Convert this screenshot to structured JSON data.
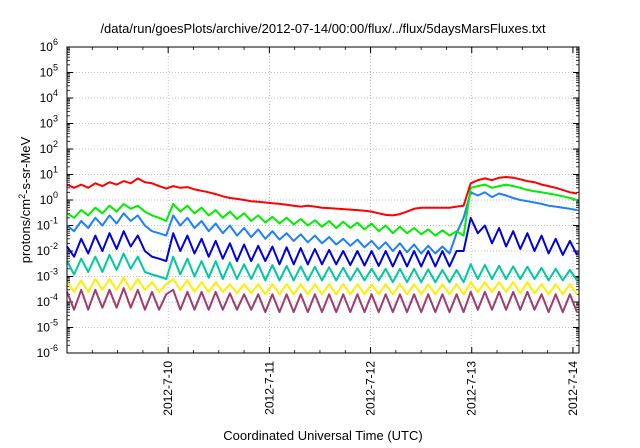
{
  "chart_data": {
    "type": "line",
    "title": "/data/run/goesPlots/archive/2012-07-14/00:00/flux/../flux/5daysMarsFluxes.txt",
    "xlabel": "Coordinated Universal Time (UTC)",
    "ylabel": {
      "prefix": "protons/cm",
      "sup": "2",
      "suffix": "-s-sr-MeV"
    },
    "y_scale": "log",
    "ylim_exp": [
      -6,
      6
    ],
    "y_ticks": [
      {
        "base": "10",
        "exp": "-6"
      },
      {
        "base": "10",
        "exp": "-5"
      },
      {
        "base": "10",
        "exp": "-4"
      },
      {
        "base": "10",
        "exp": "-3"
      },
      {
        "base": "10",
        "exp": "-2"
      },
      {
        "base": "10",
        "exp": "-1"
      },
      {
        "base": "10",
        "exp": "0"
      },
      {
        "base": "10",
        "exp": "1"
      },
      {
        "base": "10",
        "exp": "2"
      },
      {
        "base": "10",
        "exp": "3"
      },
      {
        "base": "10",
        "exp": "4"
      },
      {
        "base": "10",
        "exp": "5"
      },
      {
        "base": "10",
        "exp": "6"
      }
    ],
    "xlim_days": [
      0.0,
      5.06
    ],
    "x_ticks": [
      "2012-7-10",
      "2012-7-11",
      "2012-7-12",
      "2012-7-13",
      "2012-7-14"
    ],
    "x_tick_days": [
      1.0,
      2.0,
      3.0,
      4.0,
      5.0
    ],
    "grid": true,
    "series": [
      {
        "color": "#ff0000",
        "x": [
          0.0,
          0.07,
          0.14,
          0.21,
          0.28,
          0.35,
          0.42,
          0.49,
          0.56,
          0.63,
          0.7,
          0.77,
          0.84,
          0.91,
          0.98,
          1.05,
          1.12,
          1.19,
          1.26,
          1.33,
          1.4,
          1.47,
          1.54,
          1.61,
          1.68,
          1.75,
          1.82,
          1.89,
          1.96,
          2.03,
          2.1,
          2.17,
          2.24,
          2.31,
          2.38,
          2.45,
          2.52,
          2.59,
          2.66,
          2.73,
          2.8,
          2.87,
          2.94,
          3.01,
          3.08,
          3.15,
          3.22,
          3.29,
          3.36,
          3.43,
          3.5,
          3.57,
          3.64,
          3.71,
          3.78,
          3.85,
          3.92,
          3.99,
          4.06,
          4.13,
          4.2,
          4.27,
          4.34,
          4.41,
          4.48,
          4.55,
          4.62,
          4.69,
          4.76,
          4.83,
          4.9,
          4.97,
          5.04
        ],
        "y": [
          4.0,
          3.0,
          4.0,
          3.0,
          4.5,
          3.5,
          5.0,
          4.0,
          5.5,
          4.5,
          7.0,
          5.0,
          4.5,
          3.5,
          2.8,
          3.5,
          3.0,
          3.2,
          2.6,
          2.3,
          2.0,
          1.7,
          1.4,
          1.2,
          1.1,
          1.0,
          0.9,
          0.85,
          0.8,
          0.75,
          0.7,
          0.65,
          0.6,
          0.55,
          0.6,
          0.55,
          0.5,
          0.48,
          0.46,
          0.44,
          0.42,
          0.4,
          0.38,
          0.35,
          0.3,
          0.26,
          0.25,
          0.28,
          0.35,
          0.45,
          0.5,
          0.5,
          0.5,
          0.5,
          0.5,
          0.55,
          0.6,
          4.5,
          6.0,
          7.0,
          6.0,
          7.5,
          8.0,
          7.5,
          6.5,
          5.5,
          5.0,
          4.0,
          3.5,
          3.0,
          2.5,
          2.0,
          1.8
        ]
      },
      {
        "color": "#00ee00",
        "x": [
          0.0,
          0.07,
          0.14,
          0.21,
          0.28,
          0.35,
          0.42,
          0.49,
          0.56,
          0.63,
          0.7,
          0.77,
          0.84,
          0.91,
          0.98,
          1.05,
          1.12,
          1.19,
          1.26,
          1.33,
          1.4,
          1.47,
          1.54,
          1.61,
          1.68,
          1.75,
          1.82,
          1.89,
          1.96,
          2.03,
          2.1,
          2.17,
          2.24,
          2.31,
          2.38,
          2.45,
          2.52,
          2.59,
          2.66,
          2.73,
          2.8,
          2.87,
          2.94,
          3.01,
          3.08,
          3.15,
          3.22,
          3.29,
          3.36,
          3.43,
          3.5,
          3.57,
          3.64,
          3.71,
          3.78,
          3.85,
          3.92,
          3.99,
          4.06,
          4.13,
          4.2,
          4.27,
          4.34,
          4.41,
          4.48,
          4.55,
          4.62,
          4.69,
          4.76,
          4.83,
          4.9,
          4.97,
          5.04
        ],
        "y": [
          0.3,
          0.2,
          0.4,
          0.25,
          0.5,
          0.3,
          0.6,
          0.35,
          0.7,
          0.45,
          0.6,
          0.35,
          0.25,
          0.2,
          0.15,
          0.7,
          0.35,
          0.6,
          0.3,
          0.5,
          0.25,
          0.4,
          0.2,
          0.35,
          0.18,
          0.3,
          0.15,
          0.25,
          0.13,
          0.22,
          0.12,
          0.2,
          0.11,
          0.18,
          0.1,
          0.16,
          0.09,
          0.15,
          0.08,
          0.14,
          0.08,
          0.13,
          0.07,
          0.12,
          0.06,
          0.1,
          0.05,
          0.09,
          0.05,
          0.08,
          0.045,
          0.07,
          0.04,
          0.065,
          0.04,
          0.06,
          0.04,
          3.0,
          3.5,
          4.0,
          3.0,
          3.5,
          4.0,
          3.5,
          3.0,
          2.5,
          2.2,
          2.0,
          1.8,
          1.6,
          1.4,
          1.2,
          1.0
        ]
      },
      {
        "color": "#1e7fff",
        "x": [
          0.0,
          0.07,
          0.14,
          0.21,
          0.28,
          0.35,
          0.42,
          0.49,
          0.56,
          0.63,
          0.7,
          0.77,
          0.84,
          0.91,
          0.98,
          1.05,
          1.12,
          1.19,
          1.26,
          1.33,
          1.4,
          1.47,
          1.54,
          1.61,
          1.68,
          1.75,
          1.82,
          1.89,
          1.96,
          2.03,
          2.1,
          2.17,
          2.24,
          2.31,
          2.38,
          2.45,
          2.52,
          2.59,
          2.66,
          2.73,
          2.8,
          2.87,
          2.94,
          3.01,
          3.08,
          3.15,
          3.22,
          3.29,
          3.36,
          3.43,
          3.5,
          3.57,
          3.64,
          3.71,
          3.78,
          3.85,
          3.92,
          3.99,
          4.06,
          4.13,
          4.2,
          4.27,
          4.34,
          4.41,
          4.48,
          4.55,
          4.62,
          4.69,
          4.76,
          4.83,
          4.9,
          4.97,
          5.04
        ],
        "y": [
          0.1,
          0.06,
          0.15,
          0.08,
          0.2,
          0.1,
          0.25,
          0.12,
          0.3,
          0.15,
          0.25,
          0.1,
          0.06,
          0.05,
          0.04,
          0.25,
          0.1,
          0.2,
          0.08,
          0.15,
          0.06,
          0.12,
          0.05,
          0.1,
          0.04,
          0.08,
          0.035,
          0.07,
          0.03,
          0.06,
          0.028,
          0.05,
          0.025,
          0.045,
          0.022,
          0.04,
          0.02,
          0.035,
          0.018,
          0.03,
          0.016,
          0.028,
          0.014,
          0.025,
          0.012,
          0.022,
          0.01,
          0.02,
          0.009,
          0.018,
          0.008,
          0.016,
          0.008,
          0.015,
          0.008,
          0.05,
          0.2,
          2.0,
          1.5,
          2.0,
          1.3,
          1.8,
          1.5,
          1.2,
          1.0,
          0.9,
          0.8,
          0.7,
          0.6,
          0.55,
          0.5,
          0.45,
          0.4
        ]
      },
      {
        "color": "#0000dd",
        "x": [
          0.0,
          0.07,
          0.14,
          0.21,
          0.28,
          0.35,
          0.42,
          0.49,
          0.56,
          0.63,
          0.7,
          0.77,
          0.84,
          0.91,
          0.98,
          1.05,
          1.12,
          1.19,
          1.26,
          1.33,
          1.4,
          1.47,
          1.54,
          1.61,
          1.68,
          1.75,
          1.82,
          1.89,
          1.96,
          2.03,
          2.1,
          2.17,
          2.24,
          2.31,
          2.38,
          2.45,
          2.52,
          2.59,
          2.66,
          2.73,
          2.8,
          2.87,
          2.94,
          3.01,
          3.08,
          3.15,
          3.22,
          3.29,
          3.36,
          3.43,
          3.5,
          3.57,
          3.64,
          3.71,
          3.78,
          3.85,
          3.92,
          3.99,
          4.06,
          4.13,
          4.2,
          4.27,
          4.34,
          4.41,
          4.48,
          4.55,
          4.62,
          4.69,
          4.76,
          4.83,
          4.9,
          4.97,
          5.04
        ],
        "y": [
          0.015,
          0.006,
          0.03,
          0.008,
          0.04,
          0.01,
          0.05,
          0.012,
          0.06,
          0.015,
          0.04,
          0.01,
          0.006,
          0.005,
          0.004,
          0.05,
          0.01,
          0.04,
          0.008,
          0.03,
          0.006,
          0.025,
          0.005,
          0.02,
          0.004,
          0.018,
          0.004,
          0.016,
          0.004,
          0.015,
          0.003,
          0.014,
          0.003,
          0.013,
          0.003,
          0.012,
          0.003,
          0.011,
          0.003,
          0.01,
          0.0028,
          0.01,
          0.0027,
          0.01,
          0.0026,
          0.01,
          0.0025,
          0.01,
          0.0025,
          0.01,
          0.0025,
          0.01,
          0.0025,
          0.01,
          0.0025,
          0.01,
          0.01,
          0.2,
          0.05,
          0.1,
          0.02,
          0.08,
          0.015,
          0.06,
          0.012,
          0.05,
          0.01,
          0.04,
          0.008,
          0.03,
          0.007,
          0.025,
          0.007
        ]
      },
      {
        "color": "#00c8a0",
        "x": [
          0.0,
          0.07,
          0.14,
          0.21,
          0.28,
          0.35,
          0.42,
          0.49,
          0.56,
          0.63,
          0.7,
          0.77,
          0.84,
          0.91,
          0.98,
          1.05,
          1.12,
          1.19,
          1.26,
          1.33,
          1.4,
          1.47,
          1.54,
          1.61,
          1.68,
          1.75,
          1.82,
          1.89,
          1.96,
          2.03,
          2.1,
          2.17,
          2.24,
          2.31,
          2.38,
          2.45,
          2.52,
          2.59,
          2.66,
          2.73,
          2.8,
          2.87,
          2.94,
          3.01,
          3.08,
          3.15,
          3.22,
          3.29,
          3.36,
          3.43,
          3.5,
          3.57,
          3.64,
          3.71,
          3.78,
          3.85,
          3.92,
          3.99,
          4.06,
          4.13,
          4.2,
          4.27,
          4.34,
          4.41,
          4.48,
          4.55,
          4.62,
          4.69,
          4.76,
          4.83,
          4.9,
          4.97,
          5.04
        ],
        "y": [
          0.004,
          0.0012,
          0.005,
          0.0015,
          0.006,
          0.0015,
          0.007,
          0.0018,
          0.008,
          0.002,
          0.006,
          0.0015,
          0.0012,
          0.001,
          0.0008,
          0.006,
          0.0012,
          0.005,
          0.001,
          0.004,
          0.0009,
          0.004,
          0.0008,
          0.0035,
          0.0008,
          0.003,
          0.0008,
          0.003,
          0.0007,
          0.0028,
          0.0007,
          0.0026,
          0.0007,
          0.0025,
          0.0007,
          0.0024,
          0.0007,
          0.0023,
          0.0007,
          0.0022,
          0.0007,
          0.0021,
          0.0007,
          0.002,
          0.0007,
          0.002,
          0.0006,
          0.002,
          0.0006,
          0.002,
          0.0006,
          0.0019,
          0.0006,
          0.0018,
          0.0006,
          0.0018,
          0.0006,
          0.003,
          0.0008,
          0.0028,
          0.0008,
          0.0026,
          0.0008,
          0.0025,
          0.0008,
          0.0024,
          0.0008,
          0.0022,
          0.0007,
          0.002,
          0.0007,
          0.0018,
          0.0007
        ]
      },
      {
        "color": "#ffee00",
        "x": [
          0.0,
          0.07,
          0.14,
          0.21,
          0.28,
          0.35,
          0.42,
          0.49,
          0.56,
          0.63,
          0.7,
          0.77,
          0.84,
          0.91,
          0.98,
          1.05,
          1.12,
          1.19,
          1.26,
          1.33,
          1.4,
          1.47,
          1.54,
          1.61,
          1.68,
          1.75,
          1.82,
          1.89,
          1.96,
          2.03,
          2.1,
          2.17,
          2.24,
          2.31,
          2.38,
          2.45,
          2.52,
          2.59,
          2.66,
          2.73,
          2.8,
          2.87,
          2.94,
          3.01,
          3.08,
          3.15,
          3.22,
          3.29,
          3.36,
          3.43,
          3.5,
          3.57,
          3.64,
          3.71,
          3.78,
          3.85,
          3.92,
          3.99,
          4.06,
          4.13,
          4.2,
          4.27,
          4.34,
          4.41,
          4.48,
          4.55,
          4.62,
          4.69,
          4.76,
          4.83,
          4.9,
          4.97,
          5.04
        ],
        "y": [
          0.0006,
          0.00025,
          0.0007,
          0.00025,
          0.0008,
          0.0003,
          0.0008,
          0.0003,
          0.0009,
          0.0003,
          0.0008,
          0.0003,
          0.0006,
          0.00025,
          0.0005,
          0.0008,
          0.0003,
          0.0007,
          0.00025,
          0.0006,
          0.00025,
          0.0006,
          0.00025,
          0.0005,
          0.00022,
          0.0005,
          0.00022,
          0.0005,
          0.0002,
          0.0005,
          0.0002,
          0.0005,
          0.0002,
          0.0005,
          0.0002,
          0.0005,
          0.0002,
          0.0005,
          0.0002,
          0.0005,
          0.0002,
          0.0005,
          0.0002,
          0.0005,
          0.0002,
          0.0005,
          0.0002,
          0.0005,
          0.0002,
          0.0005,
          0.0002,
          0.0005,
          0.0002,
          0.0005,
          0.0002,
          0.0005,
          0.0002,
          0.0006,
          0.00025,
          0.0006,
          0.00025,
          0.0006,
          0.00025,
          0.0006,
          0.00022,
          0.0006,
          0.00022,
          0.0005,
          0.0002,
          0.0005,
          0.0002,
          0.0005,
          0.0002
        ]
      },
      {
        "color": "#a03c70",
        "x": [
          0.0,
          0.07,
          0.14,
          0.21,
          0.28,
          0.35,
          0.42,
          0.49,
          0.56,
          0.63,
          0.7,
          0.77,
          0.84,
          0.91,
          0.98,
          1.05,
          1.12,
          1.19,
          1.26,
          1.33,
          1.4,
          1.47,
          1.54,
          1.61,
          1.68,
          1.75,
          1.82,
          1.89,
          1.96,
          2.03,
          2.1,
          2.17,
          2.24,
          2.31,
          2.38,
          2.45,
          2.52,
          2.59,
          2.66,
          2.73,
          2.8,
          2.87,
          2.94,
          3.01,
          3.08,
          3.15,
          3.22,
          3.29,
          3.36,
          3.43,
          3.5,
          3.57,
          3.64,
          3.71,
          3.78,
          3.85,
          3.92,
          3.99,
          4.06,
          4.13,
          4.2,
          4.27,
          4.34,
          4.41,
          4.48,
          4.55,
          4.62,
          4.69,
          4.76,
          4.83,
          4.9,
          4.97,
          5.04
        ],
        "y": [
          0.00025,
          5e-05,
          0.0003,
          5e-05,
          0.0003,
          6e-05,
          0.0003,
          6e-05,
          0.00035,
          6e-05,
          0.0003,
          5e-05,
          0.00025,
          5e-05,
          0.0002,
          0.0003,
          5e-05,
          0.00025,
          5e-05,
          0.00025,
          5e-05,
          0.00025,
          5e-05,
          0.00022,
          5e-05,
          0.0002,
          5e-05,
          0.0002,
          4e-05,
          0.0002,
          4e-05,
          0.0002,
          4e-05,
          0.0002,
          4e-05,
          0.0002,
          4e-05,
          0.0002,
          4e-05,
          0.0002,
          4e-05,
          0.0002,
          4e-05,
          0.0002,
          4e-05,
          0.0002,
          4e-05,
          0.0002,
          4e-05,
          0.0002,
          4e-05,
          0.0002,
          4e-05,
          0.0002,
          4e-05,
          0.0002,
          4e-05,
          0.00025,
          5e-05,
          0.00025,
          5e-05,
          0.00025,
          5e-05,
          0.00025,
          5e-05,
          0.00025,
          5e-05,
          0.0002,
          4e-05,
          0.0002,
          4e-05,
          0.0002,
          4e-05
        ]
      }
    ]
  }
}
